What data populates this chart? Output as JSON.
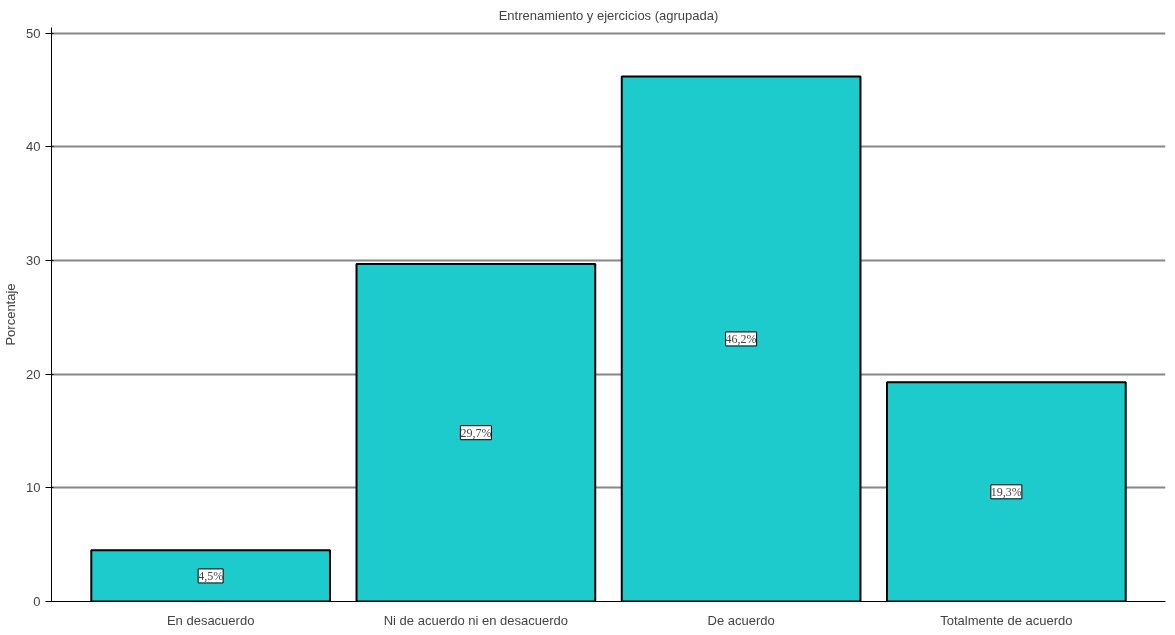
{
  "chart_data": {
    "type": "bar",
    "title": "Entrenamiento y ejercicios (agrupada)",
    "ylabel": "Porcentaje",
    "categories": [
      "En desacuerdo",
      "Ni de acuerdo ni en desacuerdo",
      "De acuerdo",
      "Totalmente de acuerdo"
    ],
    "values": [
      4.5,
      29.7,
      46.2,
      19.3
    ],
    "value_labels": [
      "4,5%",
      "29,7%",
      "46,2%",
      "19,3%"
    ],
    "color": "#1ecbcc",
    "ylim": [
      0,
      50.5
    ],
    "yticks": [
      0,
      10,
      20,
      30,
      40,
      50
    ],
    "grid": "y"
  }
}
